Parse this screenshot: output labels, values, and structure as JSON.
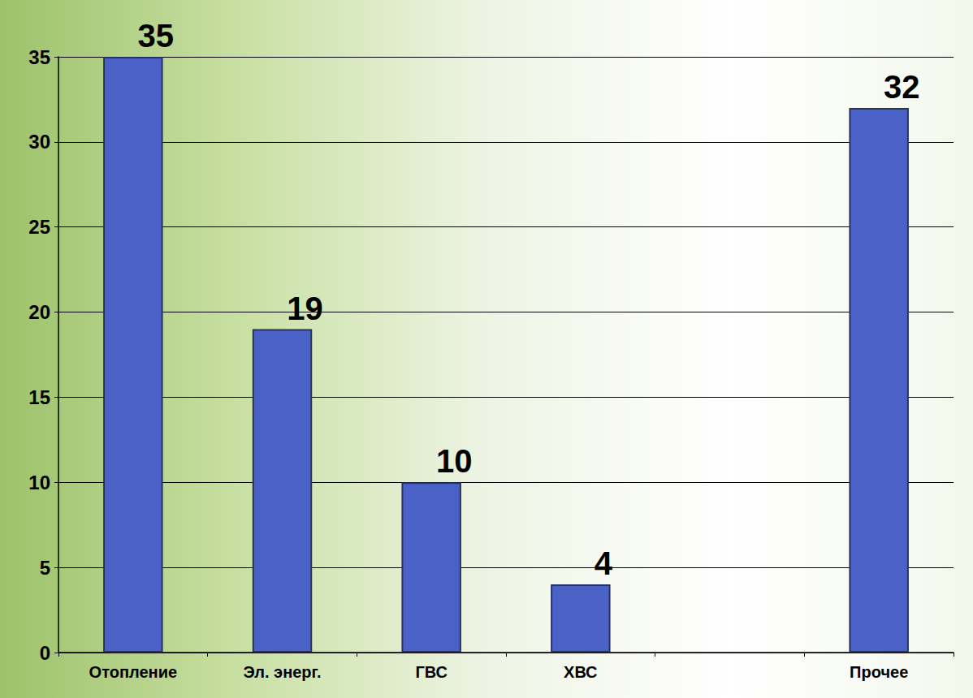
{
  "chart_data": {
    "type": "bar",
    "categories": [
      "Отопление",
      "Эл. энерг.",
      "ГВС",
      "ХВС",
      null,
      "Прочее"
    ],
    "values": [
      35,
      19,
      10,
      4,
      null,
      32
    ],
    "color": "#4a62c8",
    "ylim": [
      0,
      35
    ],
    "yticks": [
      0,
      5,
      10,
      15,
      20,
      25,
      30,
      35
    ],
    "grid": true,
    "data_labels": true
  }
}
